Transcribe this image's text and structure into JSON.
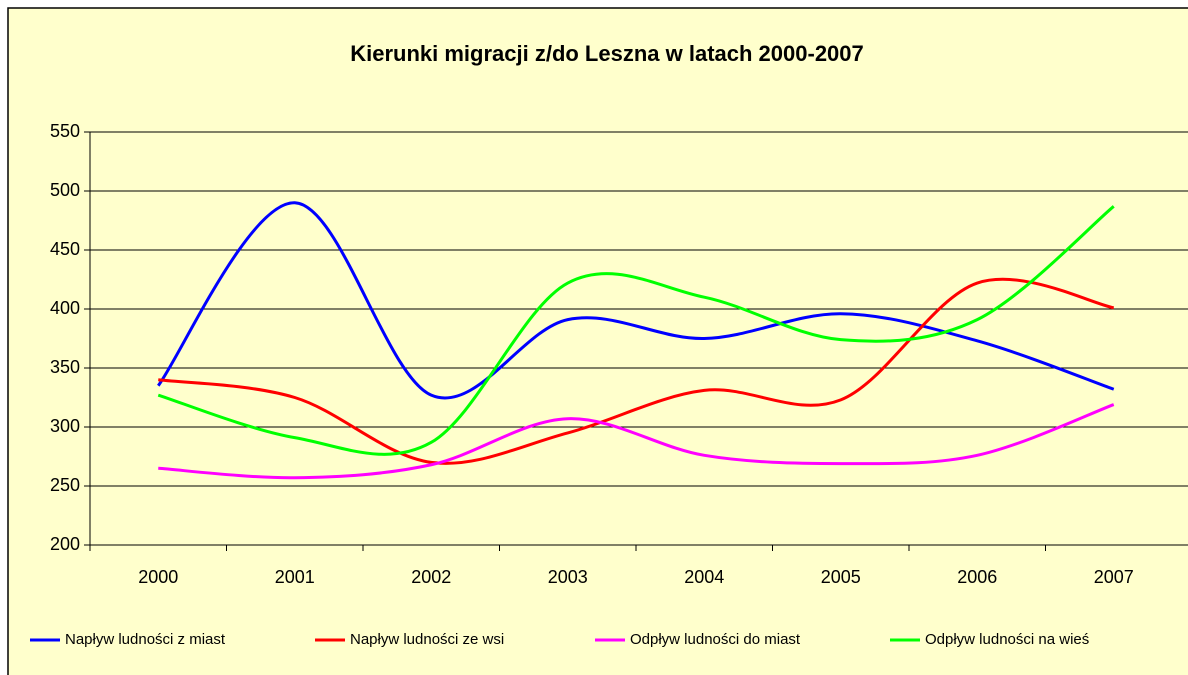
{
  "chart_data": {
    "type": "line",
    "title": "Kierunki migracji z/do Leszna w latach 2000-2007",
    "categories": [
      "2000",
      "2001",
      "2002",
      "2003",
      "2004",
      "2005",
      "2006",
      "2007"
    ],
    "series": [
      {
        "name": "Napływ ludności z miast",
        "color": "#0000ff",
        "values": [
          335,
          490,
          327,
          391,
          375,
          396,
          373,
          332
        ]
      },
      {
        "name": "Napływ ludności ze wsi",
        "color": "#ff0000",
        "values": [
          340,
          325,
          270,
          295,
          331,
          323,
          422,
          401
        ]
      },
      {
        "name": "Odpływ ludności do miast",
        "color": "#ff00ff",
        "values": [
          265,
          257,
          268,
          307,
          276,
          269,
          276,
          319
        ]
      },
      {
        "name": "Odpływ ludności na wieś",
        "color": "#00ff00",
        "values": [
          327,
          291,
          287,
          422,
          410,
          374,
          391,
          487
        ]
      }
    ],
    "ylim": [
      200,
      550
    ],
    "yticks": [
      200,
      250,
      300,
      350,
      400,
      450,
      500,
      550
    ],
    "grid": true,
    "smooth": true,
    "legend": "bottom"
  }
}
